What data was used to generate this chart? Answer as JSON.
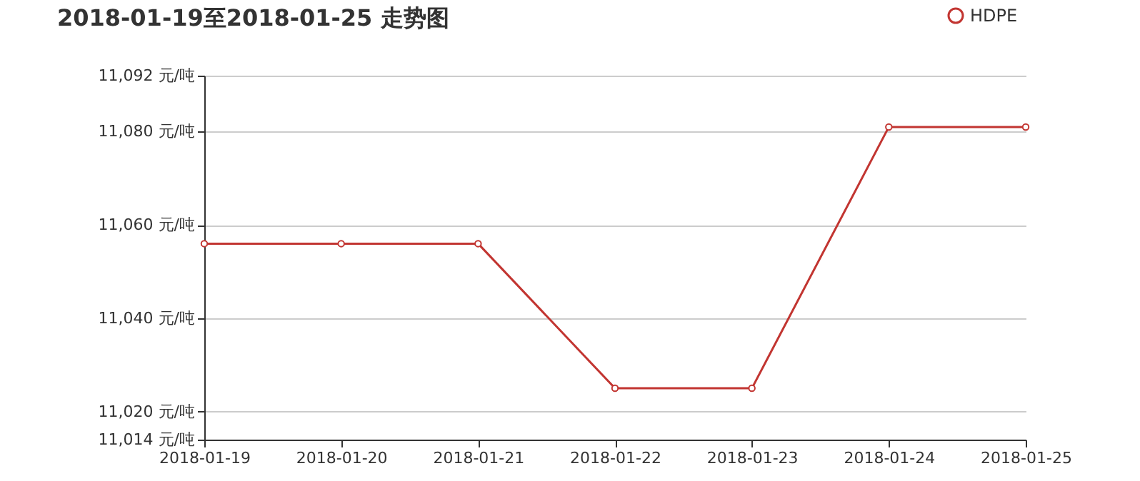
{
  "chart_data": {
    "type": "line",
    "title": "2018-01-19至2018-01-25 走势图",
    "categories": [
      "2018-01-19",
      "2018-01-20",
      "2018-01-21",
      "2018-01-22",
      "2018-01-23",
      "2018-01-24",
      "2018-01-25"
    ],
    "series": [
      {
        "name": "HDPE",
        "color": "#c23531",
        "values": [
          11056,
          11056,
          11056,
          11025,
          11025,
          11081,
          11081
        ]
      }
    ],
    "ylim": [
      11014,
      11092
    ],
    "yticks": [
      {
        "value": 11014,
        "label": "11,014 元/吨"
      },
      {
        "value": 11020,
        "label": "11,020 元/吨"
      },
      {
        "value": 11040,
        "label": "11,040 元/吨"
      },
      {
        "value": 11060,
        "label": "11,060 元/吨"
      },
      {
        "value": 11080,
        "label": "11,080 元/吨"
      },
      {
        "value": 11092,
        "label": "11,092 元/吨"
      }
    ],
    "grid": "y",
    "legend": "top right",
    "marker": "circle",
    "line_style": "solid"
  }
}
